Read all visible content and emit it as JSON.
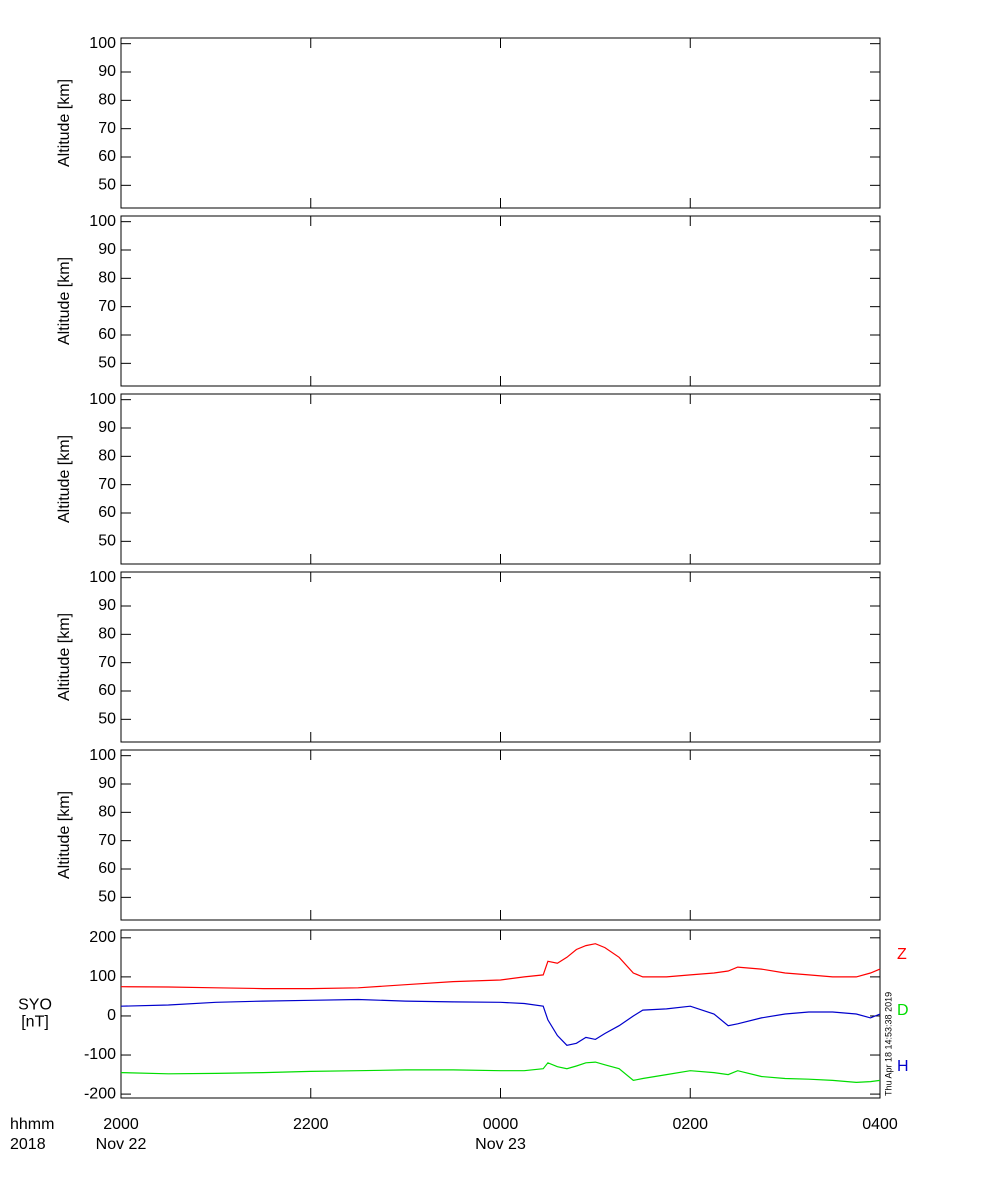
{
  "chart_data": [
    {
      "type": "line",
      "ylabel": "Altitude [km]",
      "ylim": [
        42,
        102
      ],
      "yticks": [
        50,
        60,
        70,
        80,
        90,
        100
      ]
    },
    {
      "type": "line",
      "ylabel": "Altitude [km]",
      "ylim": [
        42,
        102
      ],
      "yticks": [
        50,
        60,
        70,
        80,
        90,
        100
      ]
    },
    {
      "type": "line",
      "ylabel": "Altitude [km]",
      "ylim": [
        42,
        102
      ],
      "yticks": [
        50,
        60,
        70,
        80,
        90,
        100
      ]
    },
    {
      "type": "line",
      "ylabel": "Altitude [km]",
      "ylim": [
        42,
        102
      ],
      "yticks": [
        50,
        60,
        70,
        80,
        90,
        100
      ]
    },
    {
      "type": "line",
      "ylabel": "Altitude [km]",
      "ylim": [
        42,
        102
      ],
      "yticks": [
        50,
        60,
        70,
        80,
        90,
        100
      ]
    },
    {
      "type": "line",
      "ylabel": [
        "SYO",
        "[nT]"
      ],
      "ylim": [
        -210,
        220
      ],
      "yticks": [
        -200,
        -100,
        0,
        100,
        200
      ],
      "xlim": [
        20,
        28
      ],
      "xticks": [
        {
          "value": 20,
          "label": "2000"
        },
        {
          "value": 22,
          "label": "2200"
        },
        {
          "value": 24,
          "label": "0000"
        },
        {
          "value": 26,
          "label": "0200"
        },
        {
          "value": 28,
          "label": "0400"
        }
      ],
      "xlabel_rows": [
        "hhmm",
        "2018"
      ],
      "date_labels": [
        {
          "value": 20,
          "label": "Nov 22"
        },
        {
          "value": 24,
          "label": "Nov 23"
        }
      ],
      "x": [
        20,
        20.5,
        21,
        21.5,
        22,
        22.5,
        23,
        23.5,
        24,
        24.25,
        24.45,
        24.5,
        24.6,
        24.7,
        24.8,
        24.9,
        25.0,
        25.1,
        25.25,
        25.4,
        25.5,
        25.75,
        26.0,
        26.25,
        26.4,
        26.5,
        26.75,
        27.0,
        27.25,
        27.5,
        27.75,
        27.9,
        28
      ],
      "series": [
        {
          "name": "Z",
          "color": "#ff0000",
          "values": [
            75,
            74,
            72,
            70,
            70,
            72,
            80,
            88,
            92,
            100,
            105,
            140,
            135,
            150,
            170,
            180,
            185,
            175,
            150,
            110,
            100,
            100,
            105,
            110,
            115,
            125,
            120,
            110,
            105,
            100,
            100,
            110,
            120
          ]
        },
        {
          "name": "D",
          "color": "#00dd00",
          "values": [
            -145,
            -148,
            -147,
            -145,
            -142,
            -140,
            -138,
            -138,
            -140,
            -140,
            -135,
            -120,
            -130,
            -135,
            -128,
            -120,
            -118,
            -125,
            -135,
            -165,
            -160,
            -150,
            -140,
            -145,
            -150,
            -140,
            -155,
            -160,
            -162,
            -165,
            -170,
            -168,
            -165
          ]
        },
        {
          "name": "H",
          "color": "#0000cc",
          "values": [
            25,
            28,
            35,
            38,
            40,
            42,
            38,
            36,
            35,
            32,
            25,
            -10,
            -50,
            -75,
            -70,
            -55,
            -60,
            -45,
            -25,
            0,
            15,
            18,
            25,
            5,
            -25,
            -20,
            -5,
            5,
            10,
            10,
            5,
            -5,
            5
          ]
        }
      ]
    }
  ],
  "timestamp": "Thu Apr 18 14:53:38 2019"
}
